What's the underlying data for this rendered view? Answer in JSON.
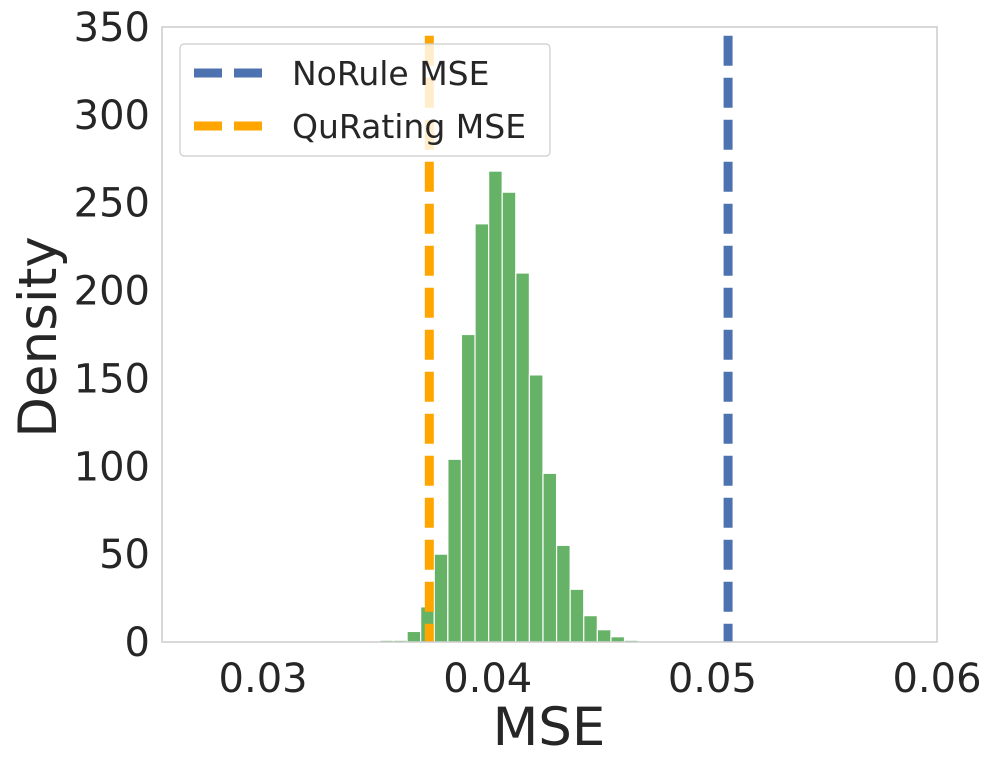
{
  "chart_data": {
    "type": "histogram",
    "xlabel": "MSE",
    "ylabel": "Density",
    "xlim": [
      0.0255,
      0.06
    ],
    "ylim": [
      0,
      350
    ],
    "xticks": [
      0.03,
      0.04,
      0.05,
      0.06
    ],
    "xtick_labels": [
      "0.03",
      "0.04",
      "0.05",
      "0.06"
    ],
    "yticks": [
      0,
      50,
      100,
      150,
      200,
      250,
      300,
      350
    ],
    "ytick_labels": [
      "0",
      "50",
      "100",
      "150",
      "200",
      "250",
      "300",
      "350"
    ],
    "grid": false,
    "legend_position": "upper-left",
    "bins": {
      "start": 0.0352,
      "width": 0.000605,
      "density": [
        1,
        1,
        6,
        20,
        50,
        104,
        175,
        238,
        268,
        256,
        210,
        152,
        96,
        55,
        30,
        15,
        7,
        3,
        1
      ]
    },
    "histogram_color": "#66b266",
    "lines": [
      {
        "name": "NoRule MSE",
        "x": 0.0507,
        "color": "#4c72b0",
        "style": "dashed"
      },
      {
        "name": "QuRating MSE",
        "x": 0.0374,
        "color": "#ffa500",
        "style": "dashed"
      }
    ],
    "legend": [
      {
        "label": "NoRule MSE",
        "color": "#4c72b0"
      },
      {
        "label": "QuRating MSE",
        "color": "#ffa500"
      }
    ]
  }
}
